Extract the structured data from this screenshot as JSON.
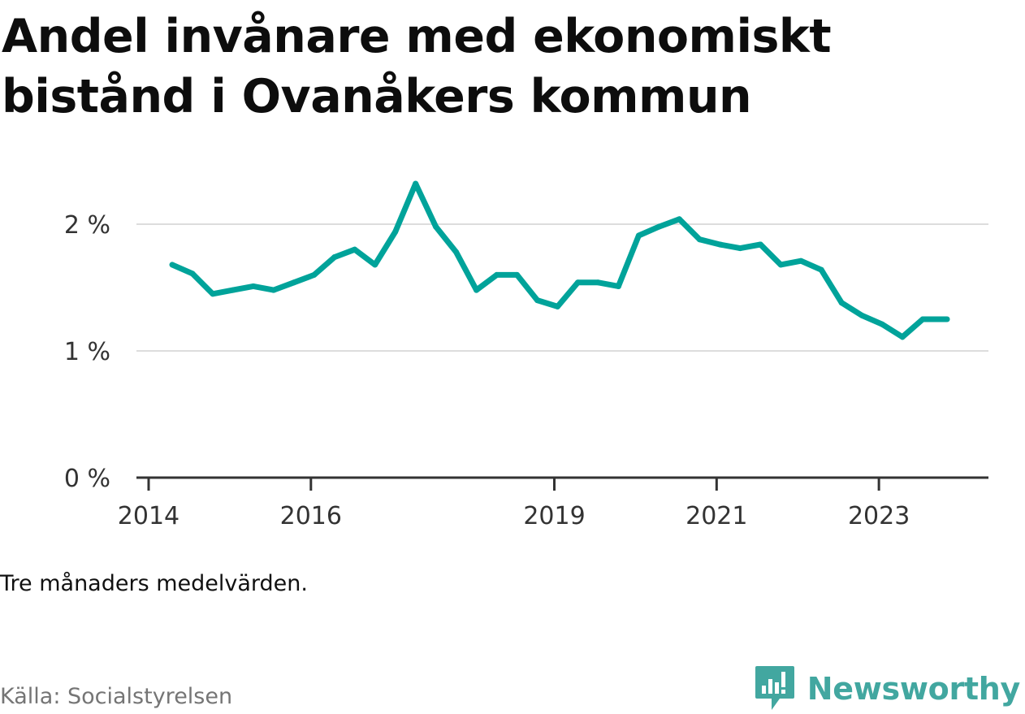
{
  "title": "Andel invånare med ekonomiskt bistånd i Ovanåkers kommun",
  "note": "Tre månaders medelvärden.",
  "source": "Källa: Socialstyrelsen",
  "brand": {
    "name": "Newsworthy",
    "icon": "newsworthy-logo-icon",
    "color": "#42a7a0"
  },
  "colors": {
    "line": "#00a39a",
    "grid": "#dddddd",
    "axis": "#333333"
  },
  "chart_data": {
    "type": "line",
    "title": "Andel invånare med ekonomiskt bistånd i Ovanåkers kommun",
    "xlabel": "",
    "ylabel": "",
    "ylim": [
      0,
      2.5
    ],
    "y_ticks": [
      {
        "value": 0,
        "label": "0 %"
      },
      {
        "value": 1,
        "label": "1 %"
      },
      {
        "value": 2,
        "label": "2 %"
      }
    ],
    "x_ticks": [
      {
        "value": 2014.0,
        "label": "2014"
      },
      {
        "value": 2016.0,
        "label": "2016"
      },
      {
        "value": 2019.0,
        "label": "2019"
      },
      {
        "value": 2021.0,
        "label": "2021"
      },
      {
        "value": 2023.0,
        "label": "2023"
      }
    ],
    "xlim": [
      2013.85,
      2024.35
    ],
    "grid": "horizontal",
    "series": [
      {
        "values": [
          {
            "x": 2014.29,
            "y": 1.68
          },
          {
            "x": 2014.54,
            "y": 1.61
          },
          {
            "x": 2014.79,
            "y": 1.45
          },
          {
            "x": 2015.04,
            "y": 1.48
          },
          {
            "x": 2015.29,
            "y": 1.51
          },
          {
            "x": 2015.54,
            "y": 1.48
          },
          {
            "x": 2015.79,
            "y": 1.54
          },
          {
            "x": 2016.04,
            "y": 1.6
          },
          {
            "x": 2016.29,
            "y": 1.74
          },
          {
            "x": 2016.54,
            "y": 1.8
          },
          {
            "x": 2016.79,
            "y": 1.68
          },
          {
            "x": 2017.04,
            "y": 1.94
          },
          {
            "x": 2017.29,
            "y": 2.32
          },
          {
            "x": 2017.54,
            "y": 1.98
          },
          {
            "x": 2017.79,
            "y": 1.78
          },
          {
            "x": 2018.04,
            "y": 1.48
          },
          {
            "x": 2018.29,
            "y": 1.6
          },
          {
            "x": 2018.54,
            "y": 1.6
          },
          {
            "x": 2018.79,
            "y": 1.4
          },
          {
            "x": 2019.04,
            "y": 1.35
          },
          {
            "x": 2019.29,
            "y": 1.54
          },
          {
            "x": 2019.54,
            "y": 1.54
          },
          {
            "x": 2019.79,
            "y": 1.51
          },
          {
            "x": 2020.04,
            "y": 1.91
          },
          {
            "x": 2020.29,
            "y": 1.98
          },
          {
            "x": 2020.54,
            "y": 2.04
          },
          {
            "x": 2020.79,
            "y": 1.88
          },
          {
            "x": 2021.04,
            "y": 1.84
          },
          {
            "x": 2021.29,
            "y": 1.81
          },
          {
            "x": 2021.54,
            "y": 1.84
          },
          {
            "x": 2021.79,
            "y": 1.68
          },
          {
            "x": 2022.04,
            "y": 1.71
          },
          {
            "x": 2022.29,
            "y": 1.64
          },
          {
            "x": 2022.54,
            "y": 1.38
          },
          {
            "x": 2022.79,
            "y": 1.28
          },
          {
            "x": 2023.04,
            "y": 1.21
          },
          {
            "x": 2023.29,
            "y": 1.11
          },
          {
            "x": 2023.54,
            "y": 1.25
          },
          {
            "x": 2023.84,
            "y": 1.25
          }
        ]
      }
    ]
  }
}
